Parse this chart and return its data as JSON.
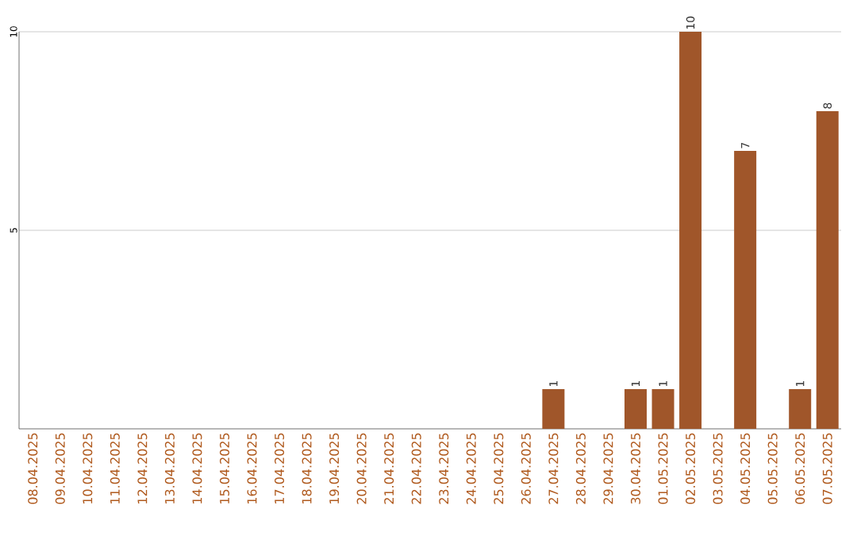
{
  "chart_data": {
    "type": "bar",
    "categories": [
      "08.04.2025",
      "09.04.2025",
      "10.04.2025",
      "11.04.2025",
      "12.04.2025",
      "13.04.2025",
      "14.04.2025",
      "15.04.2025",
      "16.04.2025",
      "17.04.2025",
      "18.04.2025",
      "19.04.2025",
      "20.04.2025",
      "21.04.2025",
      "22.04.2025",
      "23.04.2025",
      "24.04.2025",
      "25.04.2025",
      "26.04.2025",
      "27.04.2025",
      "28.04.2025",
      "29.04.2025",
      "30.04.2025",
      "01.05.2025",
      "02.05.2025",
      "03.05.2025",
      "04.05.2025",
      "05.05.2025",
      "06.05.2025",
      "07.05.2025"
    ],
    "values": [
      0,
      0,
      0,
      0,
      0,
      0,
      0,
      0,
      0,
      0,
      0,
      0,
      0,
      0,
      0,
      0,
      0,
      0,
      0,
      1,
      0,
      0,
      1,
      1,
      10,
      0,
      7,
      0,
      1,
      8
    ],
    "value_labels": [
      null,
      null,
      null,
      null,
      null,
      null,
      null,
      null,
      null,
      null,
      null,
      null,
      null,
      null,
      null,
      null,
      null,
      null,
      null,
      "1",
      null,
      null,
      "1",
      "1",
      "10",
      null,
      "7",
      null,
      "1",
      "8"
    ],
    "color": "#a0562a",
    "ylim": [
      0,
      10
    ],
    "yticks": [
      5,
      10
    ],
    "grid": "y"
  }
}
